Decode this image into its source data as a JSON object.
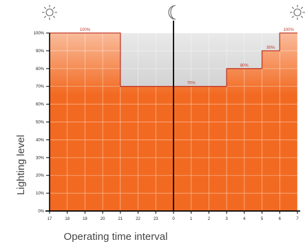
{
  "chart_data": {
    "type": "area",
    "x_tick_labels": [
      "17",
      "18",
      "19",
      "20",
      "21",
      "22",
      "23",
      "0",
      "1",
      "2",
      "3",
      "4",
      "5",
      "6",
      "7"
    ],
    "y_tick_labels": [
      "0%",
      "10%",
      "20%",
      "30%",
      "40%",
      "50%",
      "60%",
      "70%",
      "80%",
      "90%",
      "100%"
    ],
    "ylim": [
      0,
      100
    ],
    "xlabel": "Operating time interval",
    "ylabel": "Lighting level",
    "grid": true,
    "segments": [
      {
        "from": "17",
        "to": "21",
        "level": 100
      },
      {
        "from": "21",
        "to": "3",
        "level": 70
      },
      {
        "from": "3",
        "to": "5",
        "level": 80
      },
      {
        "from": "5",
        "to": "6",
        "level": 90
      },
      {
        "from": "6",
        "to": "7",
        "level": 100
      }
    ],
    "annotations": [
      {
        "text": "100%",
        "at_x": "19"
      },
      {
        "text": "70%",
        "at_x": "1"
      },
      {
        "text": "80%",
        "at_x": "4"
      },
      {
        "text": "90%",
        "at_x": "5.5"
      },
      {
        "text": "100%",
        "at_x": "6.5"
      }
    ],
    "icons": [
      {
        "name": "sun-icon",
        "at_x": "17"
      },
      {
        "name": "moon-icon",
        "at_x": "0"
      },
      {
        "name": "sun-icon",
        "at_x": "7"
      }
    ],
    "colors": {
      "fill": "#f26a21",
      "unlit": "#cfcfcf",
      "step_line": "#c0392b",
      "axis": "#000000"
    }
  }
}
